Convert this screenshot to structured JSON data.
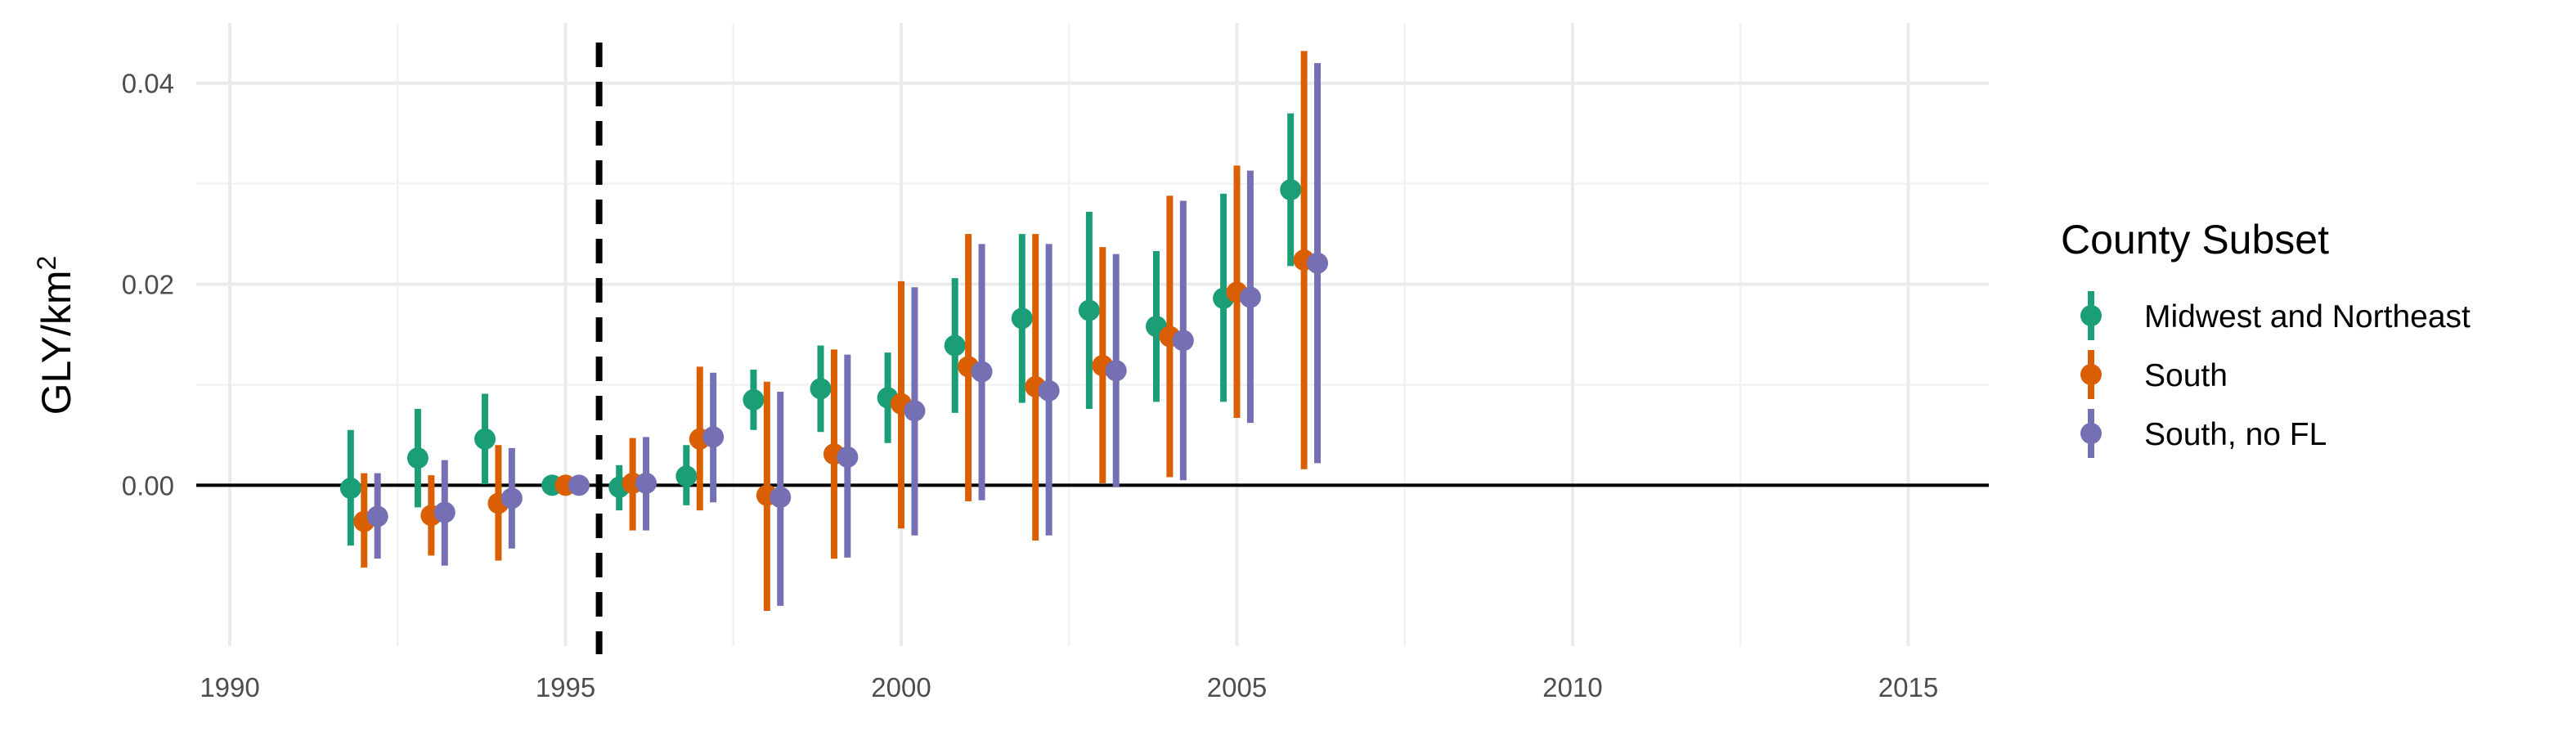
{
  "chart_data": {
    "type": "scatter",
    "subtype": "point-range (event study)",
    "title": "",
    "xlabel": "",
    "ylabel": "GLY/km",
    "ylabel_superscript": "2",
    "xlim": [
      1989.5,
      2016.2
    ],
    "ylim": [
      -0.016,
      0.046
    ],
    "x_ticks": [
      1990,
      1995,
      2000,
      2005,
      2010,
      2015
    ],
    "y_ticks": [
      0.0,
      0.02,
      0.04
    ],
    "y_tick_labels": [
      "0.00",
      "0.02",
      "0.04"
    ],
    "grid": true,
    "hline_y": 0,
    "vline_x": 1995.5,
    "vline_style": "dashed",
    "legend": {
      "title": "County Subset",
      "placement": "right"
    },
    "years": [
      1992,
      1993,
      1994,
      1995,
      1996,
      1997,
      1998,
      1999,
      2000,
      2001,
      2002,
      2003,
      2004,
      2005,
      2006
    ],
    "series": [
      {
        "name": "Midwest and Northeast",
        "color": "#1b9e77",
        "dodge": -0.2,
        "points": [
          {
            "x": 1992,
            "y": -0.0003,
            "lo": -0.006,
            "hi": 0.0055
          },
          {
            "x": 1993,
            "y": 0.0027,
            "lo": -0.0022,
            "hi": 0.0076
          },
          {
            "x": 1994,
            "y": 0.0046,
            "lo": 0.0001,
            "hi": 0.0091
          },
          {
            "x": 1995,
            "y": 0.0,
            "lo": 0.0,
            "hi": 0.0
          },
          {
            "x": 1996,
            "y": -0.0002,
            "lo": -0.0025,
            "hi": 0.002
          },
          {
            "x": 1997,
            "y": 0.0009,
            "lo": -0.002,
            "hi": 0.004
          },
          {
            "x": 1998,
            "y": 0.0085,
            "lo": 0.0055,
            "hi": 0.0115
          },
          {
            "x": 1999,
            "y": 0.0096,
            "lo": 0.0053,
            "hi": 0.0139
          },
          {
            "x": 2000,
            "y": 0.0087,
            "lo": 0.0042,
            "hi": 0.0132
          },
          {
            "x": 2001,
            "y": 0.0139,
            "lo": 0.0072,
            "hi": 0.0206
          },
          {
            "x": 2002,
            "y": 0.0166,
            "lo": 0.0082,
            "hi": 0.025
          },
          {
            "x": 2003,
            "y": 0.0174,
            "lo": 0.0076,
            "hi": 0.0272
          },
          {
            "x": 2004,
            "y": 0.0158,
            "lo": 0.0083,
            "hi": 0.0233
          },
          {
            "x": 2005,
            "y": 0.0186,
            "lo": 0.0083,
            "hi": 0.029
          },
          {
            "x": 2006,
            "y": 0.0294,
            "lo": 0.0218,
            "hi": 0.037
          }
        ]
      },
      {
        "name": "South",
        "color": "#d95f02",
        "dodge": 0,
        "points": [
          {
            "x": 1992,
            "y": -0.0036,
            "lo": -0.0082,
            "hi": 0.0012
          },
          {
            "x": 1993,
            "y": -0.003,
            "lo": -0.007,
            "hi": 0.001
          },
          {
            "x": 1994,
            "y": -0.0018,
            "lo": -0.0075,
            "hi": 0.004
          },
          {
            "x": 1995,
            "y": 0.0,
            "lo": 0.0,
            "hi": 0.0
          },
          {
            "x": 1996,
            "y": 0.0002,
            "lo": -0.0045,
            "hi": 0.0047
          },
          {
            "x": 1997,
            "y": 0.0046,
            "lo": -0.0025,
            "hi": 0.0118
          },
          {
            "x": 1998,
            "y": -0.001,
            "lo": -0.0125,
            "hi": 0.0103
          },
          {
            "x": 1999,
            "y": 0.0031,
            "lo": -0.0073,
            "hi": 0.0135
          },
          {
            "x": 2000,
            "y": 0.0081,
            "lo": -0.0043,
            "hi": 0.0203
          },
          {
            "x": 2001,
            "y": 0.0118,
            "lo": -0.0016,
            "hi": 0.025
          },
          {
            "x": 2002,
            "y": 0.0098,
            "lo": -0.0055,
            "hi": 0.025
          },
          {
            "x": 2003,
            "y": 0.0119,
            "lo": 0.0002,
            "hi": 0.0237
          },
          {
            "x": 2004,
            "y": 0.0148,
            "lo": 0.0008,
            "hi": 0.0288
          },
          {
            "x": 2005,
            "y": 0.0192,
            "lo": 0.0067,
            "hi": 0.0318
          },
          {
            "x": 2006,
            "y": 0.0224,
            "lo": 0.0016,
            "hi": 0.0432
          }
        ]
      },
      {
        "name": "South, no FL",
        "color": "#7570b3",
        "dodge": 0.2,
        "points": [
          {
            "x": 1992,
            "y": -0.0031,
            "lo": -0.0073,
            "hi": 0.0012
          },
          {
            "x": 1993,
            "y": -0.0027,
            "lo": -0.008,
            "hi": 0.0025
          },
          {
            "x": 1994,
            "y": -0.0013,
            "lo": -0.0063,
            "hi": 0.0037
          },
          {
            "x": 1995,
            "y": 0.0,
            "lo": 0.0,
            "hi": 0.0
          },
          {
            "x": 1996,
            "y": 0.0002,
            "lo": -0.0045,
            "hi": 0.0048
          },
          {
            "x": 1997,
            "y": 0.0048,
            "lo": -0.0017,
            "hi": 0.0112
          },
          {
            "x": 1998,
            "y": -0.0012,
            "lo": -0.012,
            "hi": 0.0093
          },
          {
            "x": 1999,
            "y": 0.0028,
            "lo": -0.0072,
            "hi": 0.013
          },
          {
            "x": 2000,
            "y": 0.0074,
            "lo": -0.005,
            "hi": 0.0197
          },
          {
            "x": 2001,
            "y": 0.0113,
            "lo": -0.0015,
            "hi": 0.024
          },
          {
            "x": 2002,
            "y": 0.0094,
            "lo": -0.005,
            "hi": 0.024
          },
          {
            "x": 2003,
            "y": 0.0114,
            "lo": -0.0002,
            "hi": 0.023
          },
          {
            "x": 2004,
            "y": 0.0144,
            "lo": 0.0005,
            "hi": 0.0283
          },
          {
            "x": 2005,
            "y": 0.0187,
            "lo": 0.0062,
            "hi": 0.0313
          },
          {
            "x": 2006,
            "y": 0.0221,
            "lo": 0.0022,
            "hi": 0.042
          }
        ]
      }
    ]
  }
}
